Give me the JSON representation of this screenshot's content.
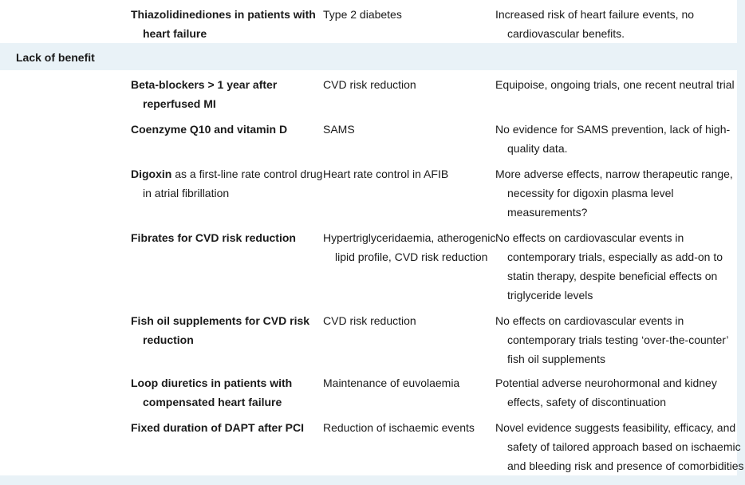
{
  "rows_top": [
    {
      "treatment": "Thiazolidinediones in patients with heart failure",
      "indication": "Type 2 diabetes",
      "rationale": "Increased risk of heart failure events, no cardiovascular benefits."
    }
  ],
  "section": {
    "label": "Lack of benefit"
  },
  "rows": [
    {
      "treatment": "Beta-blockers > 1 year after reperfused MI",
      "indication": "CVD risk reduction",
      "rationale": "Equipoise, ongoing trials, one recent neutral trial"
    },
    {
      "treatment": "Coenzyme Q10 and vitamin D",
      "indication": "SAMS",
      "rationale": "No evidence for SAMS prevention, lack of high-quality data."
    },
    {
      "treatment_bold": "Digoxin",
      "treatment_rest": " as a first-line rate control drug in atrial fibrillation",
      "indication": "Heart rate control in AFIB",
      "rationale": "More adverse effects, narrow therapeutic range, necessity for digoxin plasma level measurements?"
    },
    {
      "treatment": "Fibrates for CVD risk reduction",
      "indication": "Hypertriglyceridaemia, atherogenic lipid profile, CVD risk reduction",
      "rationale": "No effects on cardiovascular events in contemporary trials, especially as add-on to statin therapy, despite beneficial effects on triglyceride levels"
    },
    {
      "treatment": "Fish oil supplements for CVD risk reduction",
      "indication": "CVD risk reduction",
      "rationale": "No effects on cardiovascular events in contemporary trials testing ‘over-the-counter’ fish oil supplements"
    },
    {
      "treatment": "Loop diuretics in patients with compensated heart failure",
      "indication": "Maintenance of euvolaemia",
      "rationale": "Potential adverse neurohormonal and kidney effects, safety of discontinuation"
    },
    {
      "treatment": "Fixed duration of DAPT after PCI",
      "indication": "Reduction of ischaemic events",
      "rationale": "Novel evidence suggests feasibility, efficacy, and safety of tailored approach based on ischaemic and bleeding risk and presence of comorbidities"
    }
  ]
}
